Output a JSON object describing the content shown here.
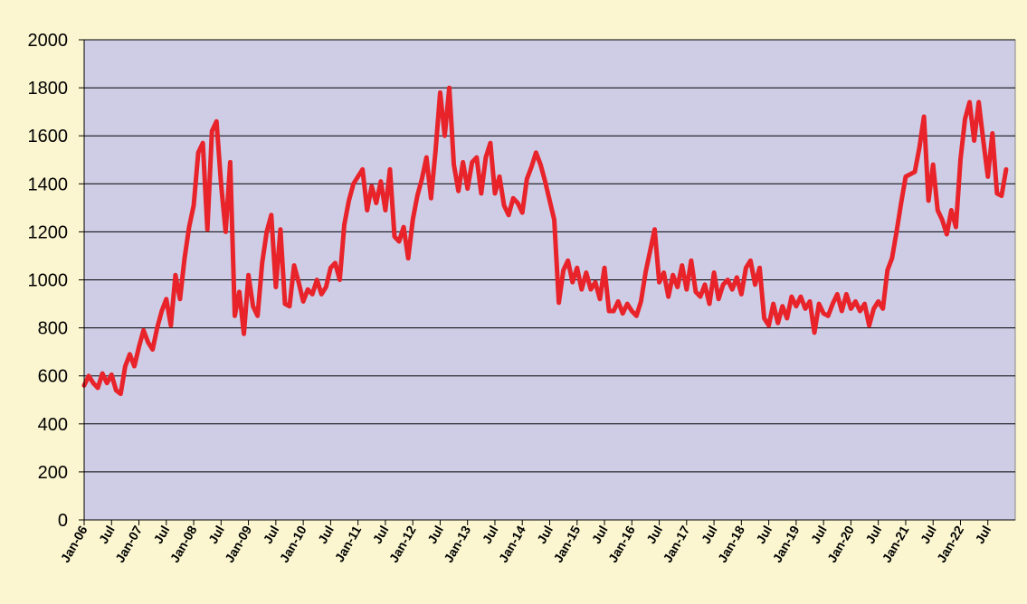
{
  "chart_data": {
    "type": "line",
    "title": "",
    "xlabel": "",
    "ylabel": "",
    "ylim": [
      0,
      2000
    ],
    "yticks": [
      0,
      200,
      400,
      600,
      800,
      1000,
      1200,
      1400,
      1600,
      1800,
      2000
    ],
    "grid": "horizontal",
    "x_start": "Jan-06",
    "x_end": "Dec-22",
    "xtick_labels": [
      "Jan-06",
      "Jul",
      "Jan-07",
      "Jul",
      "Jan-08",
      "Jul",
      "Jan-09",
      "Jul",
      "Jan-10",
      "Jul",
      "Jan-11",
      "Jul",
      "Jan-12",
      "Jul",
      "Jan-13",
      "Jul",
      "Jan-14",
      "Jul",
      "Jan-15",
      "Jul",
      "Jan-16",
      "Jul",
      "Jan-17",
      "Jul",
      "Jan-18",
      "Jul",
      "Jan-19",
      "Jul",
      "Jan-20",
      "Jul",
      "Jan-21",
      "Jul",
      "Jan-22",
      "Jul"
    ],
    "colors": {
      "line": "#e8232a",
      "plot_background": "#cfcde6",
      "page_background": "#fbf6d0",
      "grid": "#000000"
    },
    "series": [
      {
        "name": "",
        "values": [
          560,
          600,
          570,
          550,
          610,
          570,
          605,
          540,
          525,
          640,
          690,
          640,
          720,
          790,
          740,
          710,
          800,
          870,
          920,
          810,
          1020,
          920,
          1090,
          1220,
          1310,
          1530,
          1570,
          1210,
          1620,
          1660,
          1400,
          1200,
          1490,
          850,
          950,
          775,
          1020,
          890,
          850,
          1070,
          1200,
          1270,
          970,
          1210,
          900,
          890,
          1060,
          990,
          910,
          960,
          940,
          1000,
          940,
          970,
          1050,
          1070,
          1000,
          1230,
          1330,
          1400,
          1430,
          1460,
          1290,
          1390,
          1320,
          1410,
          1290,
          1460,
          1180,
          1160,
          1220,
          1090,
          1250,
          1350,
          1420,
          1510,
          1340,
          1540,
          1780,
          1600,
          1800,
          1480,
          1370,
          1490,
          1380,
          1490,
          1510,
          1360,
          1510,
          1570,
          1360,
          1430,
          1310,
          1270,
          1340,
          1320,
          1280,
          1420,
          1470,
          1530,
          1480,
          1410,
          1330,
          1250,
          905,
          1040,
          1080,
          990,
          1050,
          960,
          1030,
          960,
          990,
          920,
          1050,
          870,
          870,
          910,
          860,
          900,
          870,
          850,
          910,
          1030,
          1120,
          1210,
          990,
          1030,
          930,
          1020,
          970,
          1060,
          960,
          1080,
          950,
          930,
          980,
          900,
          1030,
          920,
          980,
          1000,
          960,
          1010,
          940,
          1050,
          1080,
          980,
          1050,
          840,
          810,
          900,
          820,
          890,
          840,
          930,
          890,
          930,
          880,
          910,
          780,
          900,
          860,
          850,
          900,
          940,
          870,
          940,
          880,
          910,
          870,
          900,
          810,
          880,
          910,
          880,
          1040,
          1090,
          1200,
          1320,
          1430,
          1440,
          1450,
          1550,
          1680,
          1330,
          1480,
          1290,
          1250,
          1190,
          1290,
          1220,
          1500,
          1670,
          1740,
          1580,
          1740,
          1580,
          1430,
          1610,
          1360,
          1350,
          1460
        ]
      }
    ]
  }
}
